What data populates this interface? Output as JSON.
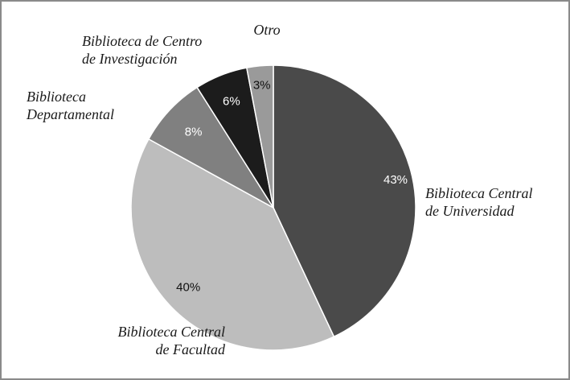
{
  "chart_data": {
    "type": "pie",
    "title": "",
    "slices": [
      {
        "name": "Biblioteca Central de Universidad",
        "label_lines": [
          "Biblioteca Central",
          "de Universidad"
        ],
        "value": 43,
        "value_label": "43%",
        "color": "#4a4a4a",
        "text_color": "#ffffff"
      },
      {
        "name": "Biblioteca Central de Facultad",
        "label_lines": [
          "Biblioteca Central",
          "de Facultad"
        ],
        "value": 40,
        "value_label": "40%",
        "color": "#bdbdbd",
        "text_color": "#111111"
      },
      {
        "name": "Biblioteca Departamental",
        "label_lines": [
          "Biblioteca",
          "Departamental"
        ],
        "value": 8,
        "value_label": "8%",
        "color": "#808080",
        "text_color": "#ffffff"
      },
      {
        "name": "Biblioteca de Centro de Investigación",
        "label_lines": [
          "Biblioteca de Centro",
          "de Investigación"
        ],
        "value": 6,
        "value_label": "6%",
        "color": "#1c1c1c",
        "text_color": "#ffffff"
      },
      {
        "name": "Otro",
        "label_lines": [
          "Otro"
        ],
        "value": 3,
        "value_label": "3%",
        "color": "#9a9a9a",
        "text_color": "#111111"
      }
    ],
    "start_angle_deg": 0,
    "direction": "clockwise",
    "legend": "none"
  }
}
